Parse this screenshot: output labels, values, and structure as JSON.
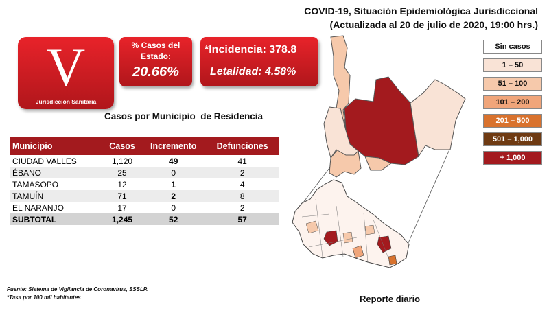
{
  "header": {
    "title_line1": "COVID-19, Situación Epidemiológica Jurisdiccional",
    "title_line2": "(Actualizada al 20 de julio de 2020, 19:00 hrs.)"
  },
  "logo": {
    "letter": "V",
    "caption": "Jurisdicción Sanitaria"
  },
  "stats": {
    "pct_label_line1": "% Casos del",
    "pct_label_line2": "Estado:",
    "pct_value": "20.66%",
    "incidencia": "*Incidencia: 378.8",
    "letalidad": "Letalidad: 4.58%"
  },
  "table": {
    "title": "Casos por Municipio  de Residencia",
    "headers": [
      "Municipio",
      "Casos",
      "Incremento",
      "Defunciones"
    ],
    "rows": [
      [
        "CIUDAD VALLES",
        "1,120",
        "49",
        "41"
      ],
      [
        "ÉBANO",
        "25",
        "0",
        "2"
      ],
      [
        "TAMASOPO",
        "12",
        "1",
        "4"
      ],
      [
        "TAMUÍN",
        "71",
        "2",
        "8"
      ],
      [
        "EL NARANJO",
        "17",
        "0",
        "2"
      ]
    ],
    "subtotal": [
      "SUBTOTAL",
      "1,245",
      "52",
      "57"
    ]
  },
  "legend": [
    {
      "label": "Sin casos",
      "color": "#ffffff",
      "text_color": "#111111"
    },
    {
      "label": "1 – 50",
      "color": "#f9e3d6",
      "text_color": "#111111"
    },
    {
      "label": "51 – 100",
      "color": "#f6c9ab",
      "text_color": "#111111"
    },
    {
      "label": "101 – 200",
      "color": "#f0a57a",
      "text_color": "#111111"
    },
    {
      "label": "201 – 500",
      "color": "#d9722d",
      "text_color": "#ffffff"
    },
    {
      "label": "501 – 1,000",
      "color": "#6e3a12",
      "text_color": "#ffffff"
    },
    {
      "label": "+ 1,000",
      "color": "#a31a1e",
      "text_color": "#ffffff"
    }
  ],
  "footer": {
    "line1": "Fuente: Sistema de Vigilancia  de Coronavirus,  SSSLP.",
    "line2": "*Tasa por 100 mil habitantes"
  },
  "reporte": "Reporte diario"
}
